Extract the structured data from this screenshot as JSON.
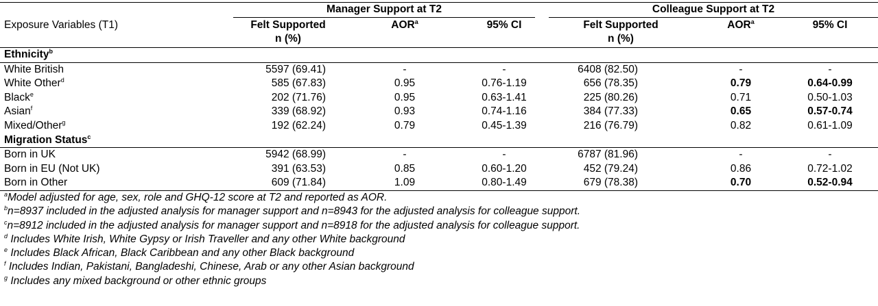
{
  "table": {
    "group_headers": [
      "Manager Support at T2",
      "Colleague Support at T2"
    ],
    "column_headers": [
      {
        "lines": [
          "Exposure Variables (T1)"
        ]
      },
      {
        "lines": [
          "Felt Supported",
          "n (%)"
        ]
      },
      {
        "lines": [
          "AOR"
        ],
        "sup": "a"
      },
      {
        "lines": [
          "95% CI"
        ]
      },
      {
        "lines": [
          "Felt Supported",
          "n (%)"
        ]
      },
      {
        "lines": [
          "AOR"
        ],
        "sup": "a"
      },
      {
        "lines": [
          "95% CI"
        ]
      }
    ],
    "sections": [
      {
        "label": "Ethnicity",
        "sup": "b",
        "rows": [
          {
            "label": "White British",
            "cells": [
              "5597 (69.41)",
              "-",
              "-",
              "6408 (82.50)",
              "-",
              "-"
            ],
            "bold_cells": []
          },
          {
            "label": "White Other",
            "sup": "d",
            "cells": [
              "585 (67.83)",
              "0.95",
              "0.76-1.19",
              "656 (78.35)",
              "0.79",
              "0.64-0.99"
            ],
            "bold_cells": [
              4,
              5
            ]
          },
          {
            "label": "Black",
            "sup": "e",
            "cells": [
              "202 (71.76)",
              "0.95",
              "0.63-1.41",
              "225 (80.26)",
              "0.71",
              "0.50-1.03"
            ],
            "bold_cells": []
          },
          {
            "label": "Asian",
            "sup": "f",
            "cells": [
              "339 (68.92)",
              "0.93",
              "0.74-1.16",
              "384 (77.33)",
              "0.65",
              "0.57-0.74"
            ],
            "bold_cells": [
              4,
              5
            ]
          },
          {
            "label": "Mixed/Other",
            "sup": "g",
            "cells": [
              "192 (62.24)",
              "0.79",
              "0.45-1.39",
              "216 (76.79)",
              "0.82",
              "0.61-1.09"
            ],
            "bold_cells": []
          }
        ]
      },
      {
        "label": "Migration Status",
        "sup": "c",
        "rows": [
          {
            "label": "Born in UK",
            "cells": [
              "5942 (68.99)",
              "-",
              "-",
              "6787 (81.96)",
              "-",
              "-"
            ],
            "bold_cells": []
          },
          {
            "label": "Born in EU (Not UK)",
            "cells": [
              "391 (63.53)",
              "0.85",
              "0.60-1.20",
              "452 (79.24)",
              "0.86",
              "0.72-1.02"
            ],
            "bold_cells": []
          },
          {
            "label": "Born in Other",
            "cells": [
              "609 (71.84)",
              "1.09",
              "0.80-1.49",
              "679 (78.38)",
              "0.70",
              "0.52-0.94"
            ],
            "bold_cells": [
              4,
              5
            ]
          }
        ]
      }
    ],
    "footnotes": [
      {
        "sup": "a",
        "text": "Model adjusted for age, sex, role and GHQ-12 score at T2 and reported as AOR."
      },
      {
        "sup": "b",
        "text": "n=8937 included in the adjusted analysis for manager support and n=8943 for the adjusted analysis for colleague support."
      },
      {
        "sup": "c",
        "text": "n=8912 included in the adjusted analysis for manager support and n=8918 for the adjusted analysis for colleague support."
      },
      {
        "sup": "d",
        "text": " Includes White Irish, White Gypsy or Irish Traveller and any other White background"
      },
      {
        "sup": "e",
        "text": " Includes Black African, Black Caribbean and any other Black background"
      },
      {
        "sup": "f",
        "text": " Includes Indian, Pakistani, Bangladeshi, Chinese, Arab or any other Asian background"
      },
      {
        "sup": "g",
        "text": " Includes any mixed background or other ethnic groups"
      }
    ]
  }
}
